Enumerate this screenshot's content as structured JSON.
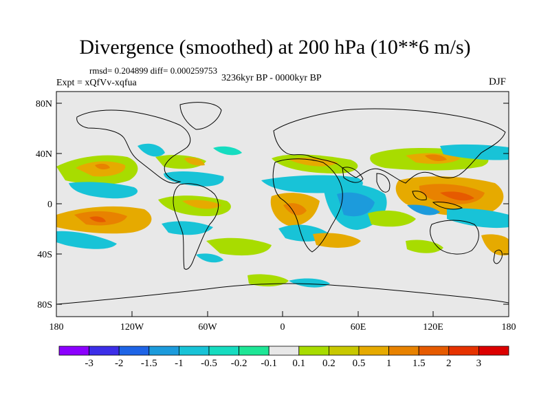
{
  "title": "Divergence (smoothed) at 200 hPa (10**6 m/s)",
  "stats": "rmsd= 0.204899 diff= 0.000259753",
  "period": "3236kyr BP - 0000kyr BP",
  "experiment": "Expt = xQfVv-xqfua",
  "season": "DJF",
  "lat_ticks": [
    "80N",
    "40N",
    "0",
    "40S",
    "80S"
  ],
  "lon_ticks": [
    "180",
    "120W",
    "60W",
    "0",
    "60E",
    "120E",
    "180"
  ],
  "colorbar": {
    "labels": [
      "-3",
      "-2",
      "-1.5",
      "-1",
      "-0.5",
      "-0.2",
      "-0.1",
      "0.1",
      "0.2",
      "0.5",
      "1",
      "1.5",
      "2",
      "3"
    ],
    "colors": [
      "#8c00ff",
      "#3c2ee8",
      "#1e64e6",
      "#1c9bdc",
      "#18c3d7",
      "#16dcc0",
      "#1ee696",
      "#e8e8e8",
      "#a8dc00",
      "#c8c800",
      "#e6aa00",
      "#e88200",
      "#e65a00",
      "#e63200",
      "#dc0000"
    ]
  },
  "colors": {
    "land_outline": "#000000",
    "background": "#e8e8e8"
  }
}
